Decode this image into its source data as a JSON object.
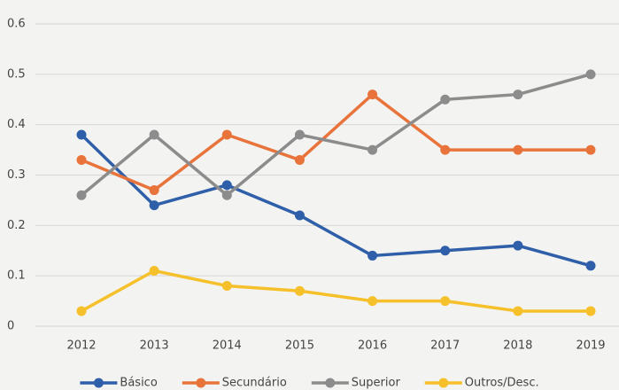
{
  "chart_data": {
    "type": "line",
    "categories": [
      "2012",
      "2013",
      "2014",
      "2015",
      "2016",
      "2017",
      "2018",
      "2019"
    ],
    "series": [
      {
        "name": "Básico",
        "color": "#2e5fa8",
        "values": [
          0.38,
          0.24,
          0.28,
          0.22,
          0.14,
          0.15,
          0.16,
          0.12
        ]
      },
      {
        "name": "Secundário",
        "color": "#e8743b",
        "values": [
          0.33,
          0.27,
          0.38,
          0.33,
          0.46,
          0.35,
          0.35,
          0.35
        ]
      },
      {
        "name": "Superior",
        "color": "#8c8c8c",
        "values": [
          0.26,
          0.38,
          0.26,
          0.38,
          0.35,
          0.45,
          0.46,
          0.5
        ]
      },
      {
        "name": "Outros/Desc.",
        "color": "#f5c02a",
        "values": [
          0.03,
          0.11,
          0.08,
          0.07,
          0.05,
          0.05,
          0.03,
          0.03
        ]
      }
    ],
    "ylim": [
      0,
      0.6
    ],
    "yticks": [
      0,
      0.1,
      0.2,
      0.3,
      0.4,
      0.5,
      0.6
    ],
    "grid": true,
    "legend": "bottom"
  }
}
